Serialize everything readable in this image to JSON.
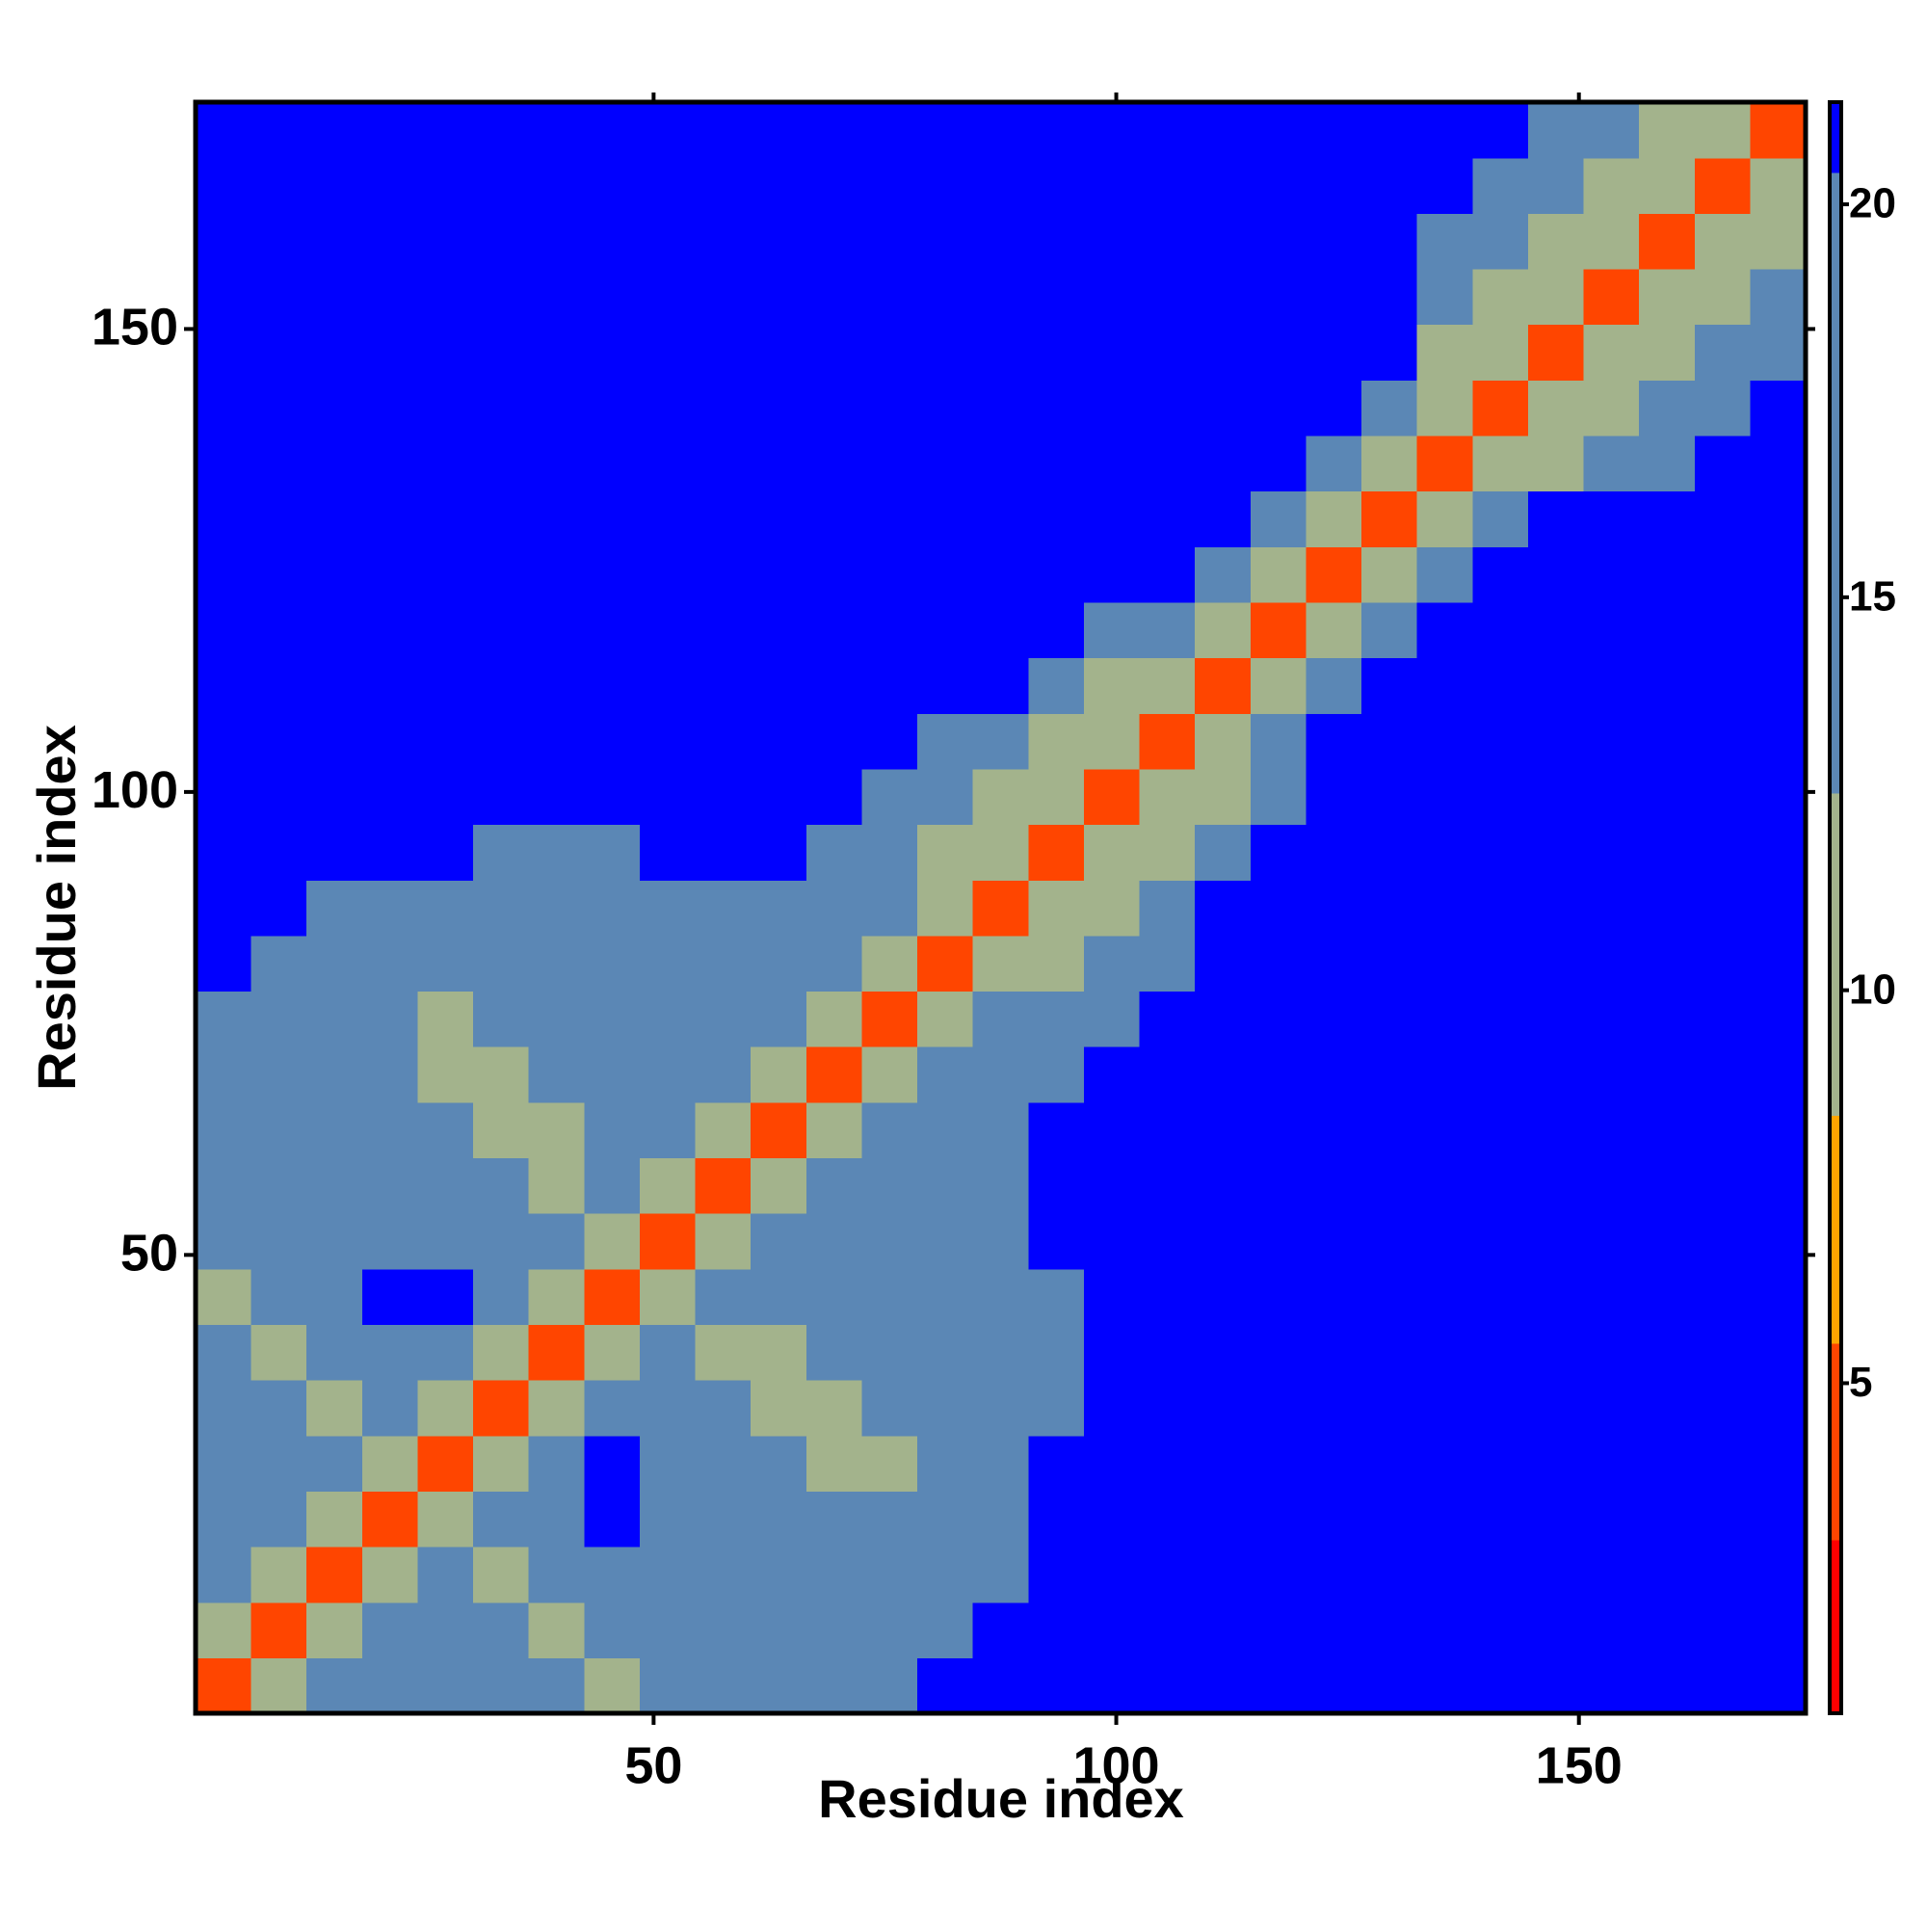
{
  "chart_data": {
    "type": "heatmap",
    "xlabel": "Residue index",
    "ylabel": "Residue index",
    "x": [
      3.5,
      9.5,
      15.5,
      21.5,
      27.5,
      33.5,
      39.5,
      45.5,
      51.5,
      57.5,
      63.5,
      69.5,
      75.5,
      81.5,
      87.5,
      93.5,
      99.5,
      105.5,
      111.5,
      117.5,
      123.5,
      129.5,
      135.5,
      141.5,
      147.5,
      153.5,
      159.5,
      165.5,
      171.5
    ],
    "y": [
      3.5,
      9.5,
      15.5,
      21.5,
      27.5,
      33.5,
      39.5,
      45.5,
      51.5,
      57.5,
      63.5,
      69.5,
      75.5,
      81.5,
      87.5,
      93.5,
      99.5,
      105.5,
      111.5,
      117.5,
      123.5,
      129.5,
      135.5,
      141.5,
      147.5,
      153.5,
      159.5,
      165.5,
      171.5
    ],
    "xlim": [
      0.5,
      174.5
    ],
    "ylim": [
      0.5,
      174.5
    ],
    "xticks": [
      50,
      100,
      150
    ],
    "yticks": [
      50,
      100,
      150
    ],
    "zlim": [
      0.8,
      21.3
    ],
    "zticks": [
      5,
      10,
      15,
      20
    ],
    "colorscale": [
      {
        "value": 3,
        "color": "#ff0000"
      },
      {
        "value": 5.5,
        "color": "#ff4500"
      },
      {
        "value": 8.4,
        "color": "#ffa500"
      },
      {
        "value": 12.5,
        "color": "#a3b38c"
      },
      {
        "value": 20.4,
        "color": "#5b87b5"
      },
      {
        "value": 21.3,
        "color": "#0000ff"
      }
    ],
    "values": [
      [
        4,
        9,
        13,
        19,
        19,
        15,
        14,
        10,
        14,
        16,
        18,
        18,
        18,
        21,
        21,
        21,
        21,
        21,
        21,
        21,
        21,
        21,
        21,
        21,
        21,
        21,
        21,
        21,
        21
      ],
      [
        9,
        4,
        9,
        13,
        17,
        14,
        10,
        14,
        14,
        15,
        16,
        17,
        17,
        19,
        21,
        21,
        21,
        21,
        21,
        21,
        21,
        21,
        21,
        21,
        21,
        21,
        21,
        21,
        21
      ],
      [
        13,
        9,
        4,
        9,
        13,
        10,
        14,
        17,
        18,
        15,
        15,
        16,
        16,
        17,
        20,
        21,
        21,
        21,
        21,
        21,
        21,
        21,
        21,
        21,
        21,
        21,
        21,
        21,
        21
      ],
      [
        19,
        13,
        9,
        4,
        9,
        13,
        16,
        21,
        20,
        15,
        14,
        15,
        16,
        18,
        20,
        21,
        21,
        21,
        21,
        21,
        21,
        21,
        21,
        21,
        21,
        21,
        21,
        21,
        21
      ],
      [
        19,
        17,
        13,
        9,
        4,
        9,
        13,
        21,
        18,
        15,
        14,
        10,
        10,
        16,
        19,
        21,
        21,
        21,
        21,
        21,
        21,
        21,
        21,
        21,
        21,
        21,
        21,
        21,
        21
      ],
      [
        15,
        14,
        10,
        13,
        9,
        4,
        9,
        13,
        14,
        14,
        10,
        10,
        14,
        17,
        19,
        20,
        21,
        21,
        21,
        21,
        21,
        21,
        21,
        21,
        21,
        21,
        21,
        21,
        21
      ],
      [
        14,
        10,
        14,
        16,
        13,
        9,
        4,
        9,
        13,
        10,
        12,
        14,
        15,
        17,
        19,
        20,
        21,
        21,
        21,
        21,
        21,
        21,
        21,
        21,
        21,
        21,
        21,
        21,
        21
      ],
      [
        10,
        14,
        17,
        21,
        21,
        13,
        9,
        4,
        9,
        13,
        14,
        15,
        15,
        17,
        19,
        20,
        21,
        21,
        21,
        21,
        21,
        21,
        21,
        21,
        21,
        21,
        21,
        21,
        21
      ],
      [
        14,
        14,
        18,
        20,
        18,
        14,
        13,
        9,
        4,
        9,
        13,
        15,
        15,
        17,
        20,
        21,
        21,
        21,
        21,
        21,
        21,
        21,
        21,
        21,
        21,
        21,
        21,
        21,
        21
      ],
      [
        16,
        15,
        15,
        15,
        15,
        14,
        10,
        13,
        9,
        4,
        9,
        13,
        15,
        17,
        20,
        21,
        21,
        21,
        21,
        21,
        21,
        21,
        21,
        21,
        21,
        21,
        21,
        21,
        21
      ],
      [
        18,
        16,
        15,
        14,
        14,
        10,
        12,
        14,
        13,
        9,
        4,
        9,
        13,
        16,
        19,
        21,
        21,
        21,
        21,
        21,
        21,
        21,
        21,
        21,
        21,
        21,
        21,
        21,
        21
      ],
      [
        18,
        17,
        16,
        15,
        10,
        10,
        14,
        15,
        15,
        13,
        9,
        4,
        9,
        13,
        17,
        20,
        21,
        21,
        21,
        21,
        21,
        21,
        21,
        21,
        21,
        21,
        21,
        21,
        21
      ],
      [
        18,
        17,
        16,
        16,
        10,
        14,
        15,
        15,
        15,
        15,
        13,
        9,
        4,
        9,
        13,
        17,
        20,
        21,
        21,
        21,
        21,
        21,
        21,
        21,
        21,
        21,
        21,
        21,
        21
      ],
      [
        21,
        19,
        17,
        18,
        16,
        17,
        17,
        17,
        17,
        17,
        16,
        13,
        9,
        4,
        9,
        12,
        17,
        20,
        21,
        21,
        21,
        21,
        21,
        21,
        21,
        21,
        21,
        21,
        21
      ],
      [
        21,
        21,
        20,
        20,
        19,
        19,
        19,
        19,
        20,
        20,
        19,
        17,
        13,
        9,
        4,
        9,
        12,
        18,
        21,
        21,
        21,
        21,
        21,
        21,
        21,
        21,
        21,
        21,
        21
      ],
      [
        21,
        21,
        21,
        21,
        21,
        20,
        20,
        20,
        21,
        21,
        21,
        20,
        17,
        12,
        9,
        4,
        9,
        12,
        18,
        21,
        21,
        21,
        21,
        21,
        21,
        21,
        21,
        21,
        21
      ],
      [
        21,
        21,
        21,
        21,
        21,
        21,
        21,
        21,
        21,
        21,
        21,
        21,
        20,
        17,
        12,
        9,
        4,
        9,
        12,
        20,
        21,
        21,
        21,
        21,
        21,
        21,
        21,
        21,
        21
      ],
      [
        21,
        21,
        21,
        21,
        21,
        21,
        21,
        21,
        21,
        21,
        21,
        21,
        21,
        20,
        18,
        12,
        9,
        4,
        9,
        13,
        21,
        21,
        21,
        21,
        21,
        21,
        21,
        21,
        21
      ],
      [
        21,
        21,
        21,
        21,
        21,
        21,
        21,
        21,
        21,
        21,
        21,
        21,
        21,
        21,
        21,
        18,
        12,
        9,
        4,
        9,
        14,
        21,
        21,
        21,
        21,
        21,
        21,
        21,
        21
      ],
      [
        21,
        21,
        21,
        21,
        21,
        21,
        21,
        21,
        21,
        21,
        21,
        21,
        21,
        21,
        21,
        21,
        20,
        13,
        9,
        4,
        9,
        14,
        21,
        21,
        21,
        21,
        21,
        21,
        21
      ],
      [
        21,
        21,
        21,
        21,
        21,
        21,
        21,
        21,
        21,
        21,
        21,
        21,
        21,
        21,
        21,
        21,
        21,
        21,
        14,
        9,
        4,
        9,
        14,
        21,
        21,
        21,
        21,
        21,
        21
      ],
      [
        21,
        21,
        21,
        21,
        21,
        21,
        21,
        21,
        21,
        21,
        21,
        21,
        21,
        21,
        21,
        21,
        21,
        21,
        21,
        14,
        9,
        4,
        9,
        13,
        21,
        21,
        21,
        21,
        21
      ],
      [
        21,
        21,
        21,
        21,
        21,
        21,
        21,
        21,
        21,
        21,
        21,
        21,
        21,
        21,
        21,
        21,
        21,
        21,
        21,
        21,
        14,
        9,
        4,
        9,
        12,
        18,
        20,
        21,
        21
      ],
      [
        21,
        21,
        21,
        21,
        21,
        21,
        21,
        21,
        21,
        21,
        21,
        21,
        21,
        21,
        21,
        21,
        21,
        21,
        21,
        21,
        21,
        13,
        9,
        4,
        9,
        12,
        18,
        20,
        21
      ],
      [
        21,
        21,
        21,
        21,
        21,
        21,
        21,
        21,
        21,
        21,
        21,
        21,
        21,
        21,
        21,
        21,
        21,
        21,
        21,
        21,
        21,
        21,
        12,
        9,
        4,
        9,
        12,
        18,
        20
      ],
      [
        21,
        21,
        21,
        21,
        21,
        21,
        21,
        21,
        21,
        21,
        21,
        21,
        21,
        21,
        21,
        21,
        21,
        21,
        21,
        21,
        21,
        21,
        18,
        12,
        9,
        4,
        9,
        12,
        18
      ],
      [
        21,
        21,
        21,
        21,
        21,
        21,
        21,
        21,
        21,
        21,
        21,
        21,
        21,
        21,
        21,
        21,
        21,
        21,
        21,
        21,
        21,
        21,
        20,
        18,
        12,
        9,
        4,
        9,
        12
      ],
      [
        21,
        21,
        21,
        21,
        21,
        21,
        21,
        21,
        21,
        21,
        21,
        21,
        21,
        21,
        21,
        21,
        21,
        21,
        21,
        21,
        21,
        21,
        21,
        20,
        18,
        12,
        9,
        4,
        9
      ],
      [
        21,
        21,
        21,
        21,
        21,
        21,
        21,
        21,
        21,
        21,
        21,
        21,
        21,
        21,
        21,
        21,
        21,
        21,
        21,
        21,
        21,
        21,
        21,
        21,
        20,
        18,
        12,
        9,
        4
      ]
    ]
  }
}
